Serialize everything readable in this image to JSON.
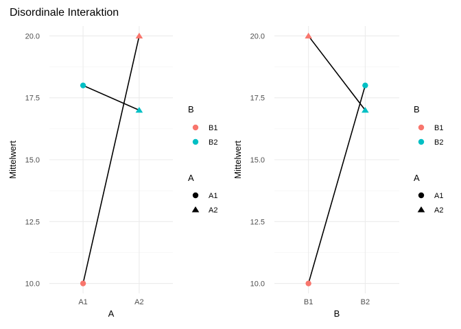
{
  "title": "Disordinale Interaktion",
  "colors": {
    "B1": "#F8766D",
    "B2": "#00BFC4"
  },
  "chart_data": [
    {
      "type": "line",
      "xlabel": "A",
      "ylabel": "Mittelwert",
      "categories": [
        "A1",
        "A2"
      ],
      "ylim": [
        9.6,
        20.4
      ],
      "yticks": [
        10,
        12.5,
        15,
        17.5,
        20
      ],
      "ytick_labels": [
        "10.0",
        "12.5",
        "15.0",
        "17.5",
        "20.0"
      ],
      "grid": true,
      "points": [
        {
          "x": "A1",
          "y": 10,
          "B": "B1",
          "A": "A1"
        },
        {
          "x": "A2",
          "y": 20,
          "B": "B1",
          "A": "A2"
        },
        {
          "x": "A1",
          "y": 18,
          "B": "B2",
          "A": "A1"
        },
        {
          "x": "A2",
          "y": 17,
          "B": "B2",
          "A": "A2"
        }
      ],
      "segments": [
        {
          "from": [
            "A1",
            10
          ],
          "to": [
            "A2",
            20
          ]
        },
        {
          "from": [
            "A1",
            18
          ],
          "to": [
            "A2",
            17
          ]
        }
      ],
      "legend_color": {
        "title": "B",
        "entries": [
          "B1",
          "B2"
        ]
      },
      "legend_shape": {
        "title": "A",
        "entries": [
          "A1",
          "A2"
        ]
      },
      "legend_position": "right"
    },
    {
      "type": "line",
      "xlabel": "B",
      "ylabel": "Mittelwert",
      "categories": [
        "B1",
        "B2"
      ],
      "ylim": [
        9.6,
        20.4
      ],
      "yticks": [
        10,
        12.5,
        15,
        17.5,
        20
      ],
      "ytick_labels": [
        "10.0",
        "12.5",
        "15.0",
        "17.5",
        "20.0"
      ],
      "grid": true,
      "points": [
        {
          "x": "B1",
          "y": 10,
          "B": "B1",
          "A": "A1"
        },
        {
          "x": "B1",
          "y": 20,
          "B": "B1",
          "A": "A2"
        },
        {
          "x": "B2",
          "y": 18,
          "B": "B2",
          "A": "A1"
        },
        {
          "x": "B2",
          "y": 17,
          "B": "B2",
          "A": "A2"
        }
      ],
      "segments": [
        {
          "from": [
            "B1",
            10
          ],
          "to": [
            "B2",
            18
          ]
        },
        {
          "from": [
            "B1",
            20
          ],
          "to": [
            "B2",
            17
          ]
        }
      ],
      "legend_color": {
        "title": "B",
        "entries": [
          "B1",
          "B2"
        ]
      },
      "legend_shape": {
        "title": "A",
        "entries": [
          "A1",
          "A2"
        ]
      },
      "legend_position": "right"
    }
  ]
}
